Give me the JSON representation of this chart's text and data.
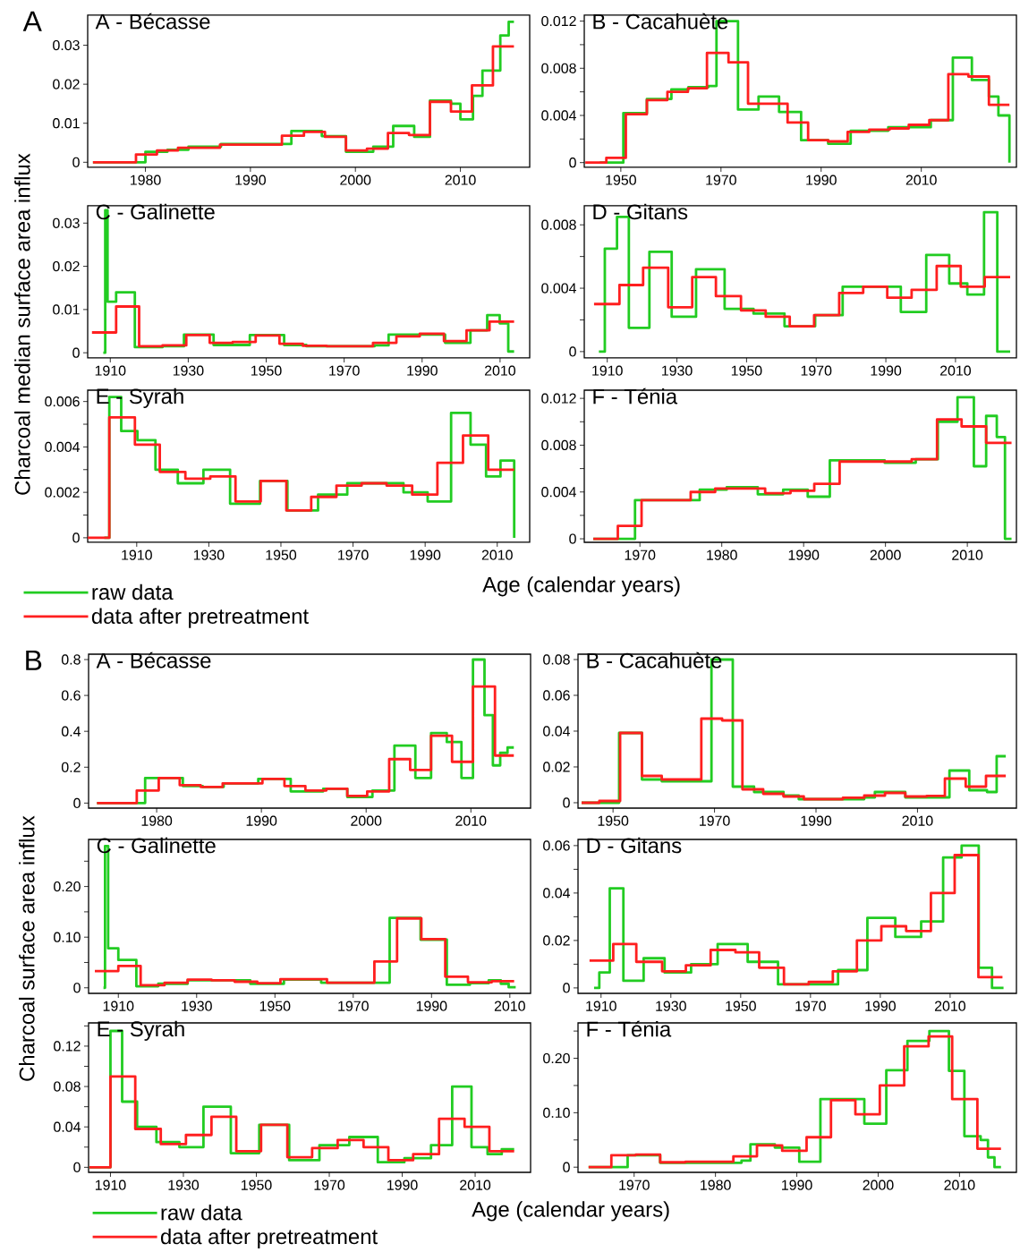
{
  "chart_data": [
    {
      "type": "step",
      "title": "A - Bécasse",
      "annotations": [
        "A"
      ],
      "xlim": [
        1974.5,
        2016.6
      ],
      "ylim": [
        -0.0013,
        0.0377
      ],
      "xticks": [
        1980,
        1990,
        2000,
        2010
      ],
      "yticks": [
        0,
        0.01,
        0.02,
        0.03
      ],
      "series": [
        {
          "color": "#22cc22",
          "x": [
            1975.0,
            1980.0,
            1982.1,
            1984.1,
            1987.2,
            1993.9,
            1996.8,
            1999.1,
            2001.7,
            2003.6,
            2005.6,
            2007.1,
            2009.1,
            2010.0,
            2011.2,
            2012.1,
            2013.8,
            2014.6,
            2015.1
          ],
          "values": [
            0,
            0.0027,
            0.0032,
            0.004,
            0.0047,
            0.008,
            0.0067,
            0.0027,
            0.004,
            0.0093,
            0.0065,
            0.0158,
            0.015,
            0.011,
            0.017,
            0.0235,
            0.0325,
            0.036,
            0.036
          ]
        },
        {
          "color": "#ff1f1f",
          "x": [
            1975.0,
            1979.1,
            1981.1,
            1983.1,
            1987.1,
            1993.0,
            1995.1,
            1997.1,
            1999.1,
            2001.1,
            2003.1,
            2005.1,
            2007.1,
            2009.1,
            2011.1,
            2013.1,
            2015.1
          ],
          "values": [
            0,
            0.002,
            0.003,
            0.0037,
            0.0045,
            0.0068,
            0.0078,
            0.0065,
            0.003,
            0.0035,
            0.0075,
            0.007,
            0.0155,
            0.013,
            0.0197,
            0.0297,
            0.0297
          ]
        }
      ]
    },
    {
      "type": "step",
      "title": "B - Cacahuète",
      "xlim": [
        1942.7,
        2029.0
      ],
      "ylim": [
        -0.0004,
        0.0125
      ],
      "xticks": [
        1950,
        1970,
        1990,
        2010
      ],
      "yticks": [
        0,
        {
          "value": 0.002,
          "label": null
        },
        0.004,
        {
          "value": 0.006,
          "label": null
        },
        0.008,
        {
          "value": 0.01,
          "label": null
        },
        0.012
      ],
      "series": [
        {
          "color": "#22cc22",
          "x": [
            1945.8,
            1950.5,
            1955.2,
            1960.1,
            1963.5,
            1967.5,
            1969.1,
            1973.4,
            1977.5,
            1981.6,
            1986.0,
            1991.4,
            1995.9,
            2003.4,
            2011.9,
            2016.3,
            2020.1,
            2023.5,
            2025.4,
            2027.6
          ],
          "values": [
            0,
            0.0042,
            0.0054,
            0.0062,
            0.0064,
            0.0065,
            0.012,
            0.0045,
            0.0056,
            0.0043,
            0.0019,
            0.0016,
            0.0027,
            0.003,
            0.0036,
            0.0089,
            0.007,
            0.0056,
            0.004,
            0
          ]
        },
        {
          "color": "#ff1f1f",
          "x": [
            1942.9,
            1947.1,
            1951.0,
            1955.2,
            1959.3,
            1963.4,
            1967.2,
            1971.5,
            1975.4,
            1983.3,
            1987.4,
            1991.4,
            1995.3,
            1999.6,
            2003.7,
            2007.5,
            2011.6,
            2015.4,
            2019.4,
            2023.5,
            2027.6
          ],
          "values": [
            0,
            0.0004,
            0.0041,
            0.0053,
            0.006,
            0.0063,
            0.0093,
            0.0085,
            0.005,
            0.0034,
            0.0019,
            0.0018,
            0.0026,
            0.0028,
            0.0029,
            0.0032,
            0.0036,
            0.0075,
            0.0073,
            0.0049,
            0.0049
          ]
        }
      ]
    },
    {
      "type": "step",
      "title": "C - Galinette",
      "ylabel": "Charcoal median surface area influx",
      "xlim": [
        1904.2,
        2017.6
      ],
      "ylim": [
        -0.0012,
        0.034
      ],
      "xticks": [
        1910,
        1930,
        1950,
        1970,
        1990,
        2010
      ],
      "yticks": [
        0,
        0.01,
        0.02,
        0.03
      ],
      "series": [
        {
          "color": "#22cc22",
          "x": [
            1908.2,
            1908.7,
            1909.3,
            1911.5,
            1916.3,
            1923.4,
            1928.9,
            1936.5,
            1945.8,
            1954.6,
            1960.3,
            1977.8,
            1981.4,
            1995.9,
            2002.4,
            2006.7,
            2009.9,
            2012.1,
            2013.6
          ],
          "values": [
            0,
            0.033,
            0.0118,
            0.014,
            0.0013,
            0.0015,
            0.0042,
            0.0018,
            0.0041,
            0.0018,
            0.0015,
            0.0017,
            0.0042,
            0.0023,
            0.0052,
            0.0087,
            0.0068,
            0.0003,
            0.0003
          ]
        },
        {
          "color": "#ff1f1f",
          "x": [
            1905.3,
            1911.5,
            1917.4,
            1923.4,
            1929.5,
            1935.5,
            1941.4,
            1947.3,
            1953.4,
            1959.4,
            1965.5,
            1977.4,
            1983.4,
            1989.4,
            1995.6,
            2001.4,
            2007.3,
            2013.6
          ],
          "values": [
            0.0047,
            0.0107,
            0.0015,
            0.0017,
            0.0041,
            0.0023,
            0.0025,
            0.004,
            0.0021,
            0.0016,
            0.0015,
            0.0023,
            0.0038,
            0.0044,
            0.0027,
            0.0052,
            0.0072,
            0.0072
          ]
        }
      ]
    },
    {
      "type": "step",
      "title": "D - Gitans",
      "xlim": [
        1903.4,
        2027.5
      ],
      "ylim": [
        -0.0004,
        0.0092
      ],
      "xticks": [
        1910,
        1930,
        1950,
        1970,
        1990,
        2010
      ],
      "yticks": [
        0,
        {
          "value": 0.002,
          "label": null
        },
        0.004,
        {
          "value": 0.006,
          "label": null
        },
        0.008
      ],
      "series": [
        {
          "color": "#22cc22",
          "x": [
            1907.6,
            1909.3,
            1912.8,
            1916.2,
            1922.1,
            1928.5,
            1935.5,
            1943.7,
            1952.0,
            1960.9,
            1969.7,
            1977.6,
            1994.3,
            2001.6,
            2008.2,
            2013.4,
            2018.2,
            2022.0,
            2025.7
          ],
          "values": [
            0,
            0.0065,
            0.0085,
            0.0015,
            0.0063,
            0.0022,
            0.0052,
            0.0027,
            0.0024,
            0.0016,
            0.0023,
            0.0041,
            0.0025,
            0.0061,
            0.0043,
            0.0036,
            0.0088,
            0,
            0
          ]
        },
        {
          "color": "#ff1f1f",
          "x": [
            1906.2,
            1913.5,
            1920.3,
            1927.5,
            1934.4,
            1941.2,
            1948.4,
            1955.5,
            1962.4,
            1969.4,
            1976.6,
            1983.5,
            1990.4,
            1997.4,
            2004.6,
            2011.5,
            2018.4,
            2025.7
          ],
          "values": [
            0.003,
            0.0042,
            0.0053,
            0.0028,
            0.0047,
            0.0035,
            0.0026,
            0.0022,
            0.0016,
            0.0023,
            0.0037,
            0.0041,
            0.0034,
            0.0039,
            0.0054,
            0.0041,
            0.0047,
            0.0047
          ]
        }
      ]
    },
    {
      "type": "step",
      "title": "E - Syrah",
      "legend": "bottom left",
      "xlim": [
        1896.4,
        2019.0
      ],
      "ylim": [
        -0.0002,
        0.0065
      ],
      "xticks": [
        1910,
        1930,
        1950,
        1970,
        1990,
        2010
      ],
      "yticks": [
        0,
        {
          "value": 0.001,
          "label": null
        },
        0.002,
        {
          "value": 0.003,
          "label": null
        },
        0.004,
        {
          "value": 0.005,
          "label": null
        },
        0.006
      ],
      "series": [
        {
          "name": "raw data",
          "color": "#22cc22",
          "x": [
            1901.0,
            1902.4,
            1905.7,
            1910.2,
            1915.2,
            1921.4,
            1928.5,
            1935.9,
            1944.2,
            1951.8,
            1960.3,
            1968.4,
            1984.0,
            1990.7,
            1997.2,
            2002.6,
            2006.9,
            2010.9,
            2014.7
          ],
          "values": [
            0,
            0.0062,
            0.0047,
            0.0043,
            0.003,
            0.0024,
            0.003,
            0.0015,
            0.0025,
            0.0012,
            0.0019,
            0.0024,
            0.002,
            0.0016,
            0.0055,
            0.0041,
            0.0027,
            0.0034,
            0
          ]
        },
        {
          "name": "data after pretreatment",
          "color": "#ff1f1f",
          "x": [
            1896.4,
            1902.4,
            1909.5,
            1916.4,
            1923.5,
            1930.4,
            1937.4,
            1944.4,
            1951.5,
            1958.4,
            1965.4,
            1972.4,
            1979.3,
            1986.4,
            1993.4,
            2000.5,
            2007.5,
            2014.7
          ],
          "values": [
            0,
            0.0053,
            0.0041,
            0.0029,
            0.0026,
            0.0027,
            0.0016,
            0.0025,
            0.0012,
            0.0018,
            0.0023,
            0.0024,
            0.0023,
            0.0019,
            0.0033,
            0.0045,
            0.003,
            0.003
          ]
        }
      ]
    },
    {
      "type": "step",
      "title": "F - Ténia",
      "xlabel": "Age (calendar years)",
      "xlim": [
        1963.2,
        2016.0
      ],
      "ylim": [
        -0.0003,
        0.0127
      ],
      "xticks": [
        1970,
        1980,
        1990,
        2000,
        2010
      ],
      "yticks": [
        0,
        {
          "value": 0.002,
          "label": null
        },
        0.004,
        {
          "value": 0.006,
          "label": null
        },
        0.008,
        {
          "value": 0.01,
          "label": null
        },
        0.012
      ],
      "series": [
        {
          "color": "#22cc22",
          "x": [
            1964.3,
            1969.4,
            1977.3,
            1980.6,
            1984.4,
            1987.5,
            1990.5,
            1993.2,
            1999.9,
            2003.7,
            2006.4,
            2008.8,
            2010.8,
            2012.3,
            2013.6,
            2014.6,
            2015.4
          ],
          "values": [
            0,
            0.0033,
            0.0042,
            0.0044,
            0.0038,
            0.0042,
            0.0036,
            0.0067,
            0.0065,
            0.0068,
            0.01,
            0.0121,
            0.0062,
            0.0105,
            0.0087,
            0,
            0
          ]
        },
        {
          "color": "#ff1f1f",
          "x": [
            1964.3,
            1967.3,
            1970.2,
            1976.2,
            1979.2,
            1985.3,
            1988.4,
            1991.3,
            1994.4,
            2003.2,
            2006.3,
            2009.3,
            2012.3,
            2015.4
          ],
          "values": [
            0,
            0.0011,
            0.0033,
            0.004,
            0.0043,
            0.0039,
            0.0041,
            0.0047,
            0.0066,
            0.0068,
            0.0102,
            0.0096,
            0.0082,
            0.0082
          ]
        }
      ]
    },
    {
      "type": "step",
      "title": "A - Bécasse",
      "annotations": [
        "B"
      ],
      "xlim": [
        1973.5,
        2015.7
      ],
      "ylim": [
        -0.028,
        0.83
      ],
      "xticks": [
        1980,
        1990,
        2000,
        2010
      ],
      "yticks": [
        0,
        0.2,
        0.4,
        0.6,
        0.8
      ],
      "series": [
        {
          "color": "#22cc22",
          "x": [
            1974.3,
            1978.9,
            1982.5,
            1984.4,
            1986.4,
            1989.7,
            1992.8,
            1995.9,
            1998.2,
            2000.6,
            2002.7,
            2004.7,
            2006.2,
            2007.7,
            2009.1,
            2010.2,
            2011.3,
            2012.1,
            2012.8,
            2013.5,
            2014.1
          ],
          "values": [
            0,
            0.14,
            0.095,
            0.09,
            0.11,
            0.135,
            0.065,
            0.08,
            0.034,
            0.07,
            0.32,
            0.14,
            0.39,
            0.34,
            0.14,
            0.8,
            0.49,
            0.21,
            0.28,
            0.31,
            0.31
          ]
        },
        {
          "color": "#ff1f1f",
          "x": [
            1974.3,
            1978.1,
            1980.2,
            1982.2,
            1984.2,
            1986.3,
            1990.1,
            1992.2,
            1994.2,
            1996.2,
            1998.2,
            2000.1,
            2002.2,
            2004.2,
            2006.2,
            2008.2,
            2010.2,
            2012.3,
            2014.1
          ],
          "values": [
            0,
            0.07,
            0.14,
            0.1,
            0.09,
            0.11,
            0.135,
            0.095,
            0.07,
            0.08,
            0.04,
            0.065,
            0.245,
            0.185,
            0.375,
            0.23,
            0.65,
            0.265,
            0.265
          ]
        }
      ]
    },
    {
      "type": "step",
      "title": "B - Cacahuète",
      "xlim": [
        1943.1,
        2029.5
      ],
      "ylim": [
        -0.003,
        0.083
      ],
      "xticks": [
        1950,
        1970,
        1990,
        2010
      ],
      "yticks": [
        0,
        0.02,
        0.04,
        0.06,
        0.08
      ],
      "series": [
        {
          "color": "#22cc22",
          "x": [
            1943.8,
            1951.2,
            1955.7,
            1959.6,
            1969.4,
            1973.6,
            1977.8,
            1983.6,
            1986.6,
            1999.5,
            2001.6,
            2007.6,
            2016.3,
            2020.2,
            2023.7,
            2025.6,
            2027.4
          ],
          "values": [
            0,
            0.039,
            0.013,
            0.012,
            0.08,
            0.009,
            0.006,
            0.004,
            0.002,
            0.003,
            0.006,
            0.003,
            0.018,
            0.007,
            0.006,
            0.026,
            0.026
          ]
        },
        {
          "color": "#ff1f1f",
          "x": [
            1943.8,
            1947.3,
            1951.4,
            1955.7,
            1959.6,
            1967.4,
            1971.5,
            1975.5,
            1979.6,
            1983.6,
            1987.6,
            1995.3,
            1999.5,
            2003.6,
            2007.6,
            2011.8,
            2015.4,
            2019.5,
            2023.5,
            2027.4
          ],
          "values": [
            0,
            0.001,
            0.039,
            0.015,
            0.013,
            0.047,
            0.046,
            0.0075,
            0.005,
            0.0035,
            0.002,
            0.0028,
            0.004,
            0.0055,
            0.0035,
            0.0038,
            0.0135,
            0.009,
            0.015,
            0.015
          ]
        }
      ]
    },
    {
      "type": "step",
      "title": "C - Galinette",
      "ylabel": "Charcoal surface area influx",
      "xlim": [
        1902.4,
        2015.3
      ],
      "ylim": [
        -0.011,
        0.293
      ],
      "xticks": [
        1910,
        1930,
        1950,
        1970,
        1990,
        2010
      ],
      "yticks": [
        0,
        {
          "value": 0.05,
          "label": null
        },
        {
          "value": 0.1,
          "label": "0.10"
        },
        {
          "value": 0.15,
          "label": null
        },
        {
          "value": 0.2,
          "label": "0.20"
        },
        {
          "value": 0.25,
          "label": null
        }
      ],
      "series": [
        {
          "color": "#22cc22",
          "x": [
            1906.2,
            1906.6,
            1907.4,
            1910.0,
            1914.6,
            1920.2,
            1927.7,
            1943.7,
            1952.3,
            1961.8,
            1979.3,
            1987.2,
            1993.9,
            1999.8,
            2004.6,
            2007.7,
            2009.7,
            2011.5
          ],
          "values": [
            0,
            0.28,
            0.078,
            0.055,
            0.003,
            0.008,
            0.015,
            0.008,
            0.016,
            0.01,
            0.138,
            0.095,
            0.006,
            0.009,
            0.015,
            0.008,
            0.001,
            0.001
          ]
        },
        {
          "color": "#ff1f1f",
          "x": [
            1904.0,
            1910.0,
            1915.7,
            1921.8,
            1927.7,
            1933.8,
            1939.7,
            1945.5,
            1951.4,
            1963.3,
            1975.4,
            1981.2,
            1987.4,
            1993.5,
            1999.3,
            2005.4,
            2011.1
          ],
          "values": [
            0.033,
            0.043,
            0.005,
            0.01,
            0.016,
            0.015,
            0.012,
            0.009,
            0.017,
            0.01,
            0.052,
            0.137,
            0.096,
            0.022,
            0.011,
            0.013,
            0.013
          ]
        }
      ]
    },
    {
      "type": "step",
      "title": "D - Gitans",
      "xlim": [
        1903.4,
        2029.0
      ],
      "ylim": [
        -0.0023,
        0.0626
      ],
      "xticks": [
        1910,
        1930,
        1950,
        1970,
        1990,
        2010
      ],
      "yticks": [
        0,
        {
          "value": 0.01,
          "label": null
        },
        0.02,
        {
          "value": 0.03,
          "label": null
        },
        0.04,
        {
          "value": 0.05,
          "label": null
        },
        0.06
      ],
      "series": [
        {
          "color": "#22cc22",
          "x": [
            1908.0,
            1909.5,
            1912.5,
            1916.4,
            1922.2,
            1928.2,
            1935.8,
            1943.4,
            1952.0,
            1960.7,
            1977.9,
            1986.3,
            1994.3,
            2001.7,
            2008.0,
            2013.3,
            2018.2,
            2022.0,
            2025.3
          ],
          "values": [
            0,
            0.0065,
            0.042,
            0.003,
            0.0125,
            0.0065,
            0.01,
            0.0185,
            0.011,
            0.0015,
            0.0075,
            0.0295,
            0.0215,
            0.028,
            0.055,
            0.06,
            0.0085,
            0,
            0
          ]
        },
        {
          "color": "#ff1f1f",
          "x": [
            1906.7,
            1913.5,
            1920.1,
            1927.5,
            1934.3,
            1941.4,
            1948.5,
            1955.3,
            1962.4,
            1969.5,
            1976.4,
            1983.3,
            1990.3,
            1997.4,
            2004.5,
            2011.3,
            2018.1,
            2025.0
          ],
          "values": [
            0.0115,
            0.0185,
            0.011,
            0.007,
            0.0095,
            0.016,
            0.015,
            0.0085,
            0.0015,
            0.0025,
            0.007,
            0.02,
            0.026,
            0.024,
            0.04,
            0.056,
            0.0045,
            0.0045
          ]
        }
      ]
    },
    {
      "type": "step",
      "title": "E - Syrah",
      "legend": "bottom left",
      "xlim": [
        1904.0,
        2025.2
      ],
      "ylim": [
        -0.005,
        0.143
      ],
      "xticks": [
        1910,
        1930,
        1950,
        1970,
        1990,
        2010
      ],
      "yticks": [
        0,
        {
          "value": 0.02,
          "label": null
        },
        0.04,
        {
          "value": 0.06,
          "label": null
        },
        0.08,
        {
          "value": 0.1,
          "label": null
        },
        0.12,
        {
          "value": 0.14,
          "label": null
        }
      ],
      "series": [
        {
          "name": "raw data",
          "color": "#22cc22",
          "x": [
            1904.2,
            1910.0,
            1913.2,
            1917.3,
            1922.6,
            1928.9,
            1935.5,
            1943.0,
            1950.8,
            1959.0,
            1967.3,
            1975.5,
            1983.3,
            1990.6,
            1997.9,
            2003.7,
            2009.0,
            2013.4,
            2017.3,
            2020.7
          ],
          "values": [
            0,
            0.135,
            0.065,
            0.04,
            0.025,
            0.02,
            0.06,
            0.014,
            0.042,
            0.007,
            0.022,
            0.03,
            0.005,
            0.009,
            0.022,
            0.08,
            0.02,
            0.013,
            0.018,
            0.018
          ]
        },
        {
          "name": "data after pretreatment",
          "color": "#ff1f1f",
          "x": [
            1904.2,
            1910.0,
            1916.8,
            1923.8,
            1930.7,
            1937.7,
            1944.5,
            1951.3,
            1958.5,
            1965.3,
            1972.3,
            1979.4,
            1986.2,
            1993.0,
            2000.1,
            2007.1,
            2013.9,
            2020.7
          ],
          "values": [
            0,
            0.09,
            0.038,
            0.023,
            0.032,
            0.05,
            0.016,
            0.042,
            0.01,
            0.019,
            0.027,
            0.02,
            0.007,
            0.013,
            0.048,
            0.04,
            0.016,
            0.016
          ]
        }
      ]
    },
    {
      "type": "step",
      "title": "F - Ténia",
      "xlabel": "Age (calendar years)",
      "xlim": [
        1963.1,
        2017.0
      ],
      "ylim": [
        -0.0095,
        0.265
      ],
      "xticks": [
        1970,
        1980,
        1990,
        2000,
        2010
      ],
      "yticks": [
        0,
        {
          "value": 0.05,
          "label": null
        },
        {
          "value": 0.1,
          "label": "0.10"
        },
        {
          "value": 0.15,
          "label": null
        },
        {
          "value": 0.2,
          "label": "0.20"
        },
        {
          "value": 0.25,
          "label": null
        }
      ],
      "series": [
        {
          "color": "#22cc22",
          "x": [
            1964.4,
            1969.2,
            1973.2,
            1983.2,
            1984.3,
            1987.3,
            1990.3,
            1992.9,
            1998.3,
            2001.0,
            2003.6,
            2006.3,
            2008.7,
            2010.6,
            2012.6,
            2013.5,
            2014.3,
            2015.1
          ],
          "values": [
            0,
            0.022,
            0.008,
            0.012,
            0.042,
            0.036,
            0.01,
            0.125,
            0.08,
            0.178,
            0.232,
            0.25,
            0.177,
            0.057,
            0.05,
            0.018,
            0,
            0
          ]
        },
        {
          "color": "#ff1f1f",
          "x": [
            1964.4,
            1967.2,
            1970.2,
            1973.2,
            1976.3,
            1982.2,
            1985.1,
            1988.2,
            1991.2,
            1994.2,
            1997.2,
            2000.2,
            2003.2,
            2006.2,
            2009.1,
            2012.2,
            2015.1
          ],
          "values": [
            0,
            0.022,
            0.023,
            0.009,
            0.01,
            0.02,
            0.04,
            0.03,
            0.055,
            0.123,
            0.097,
            0.15,
            0.222,
            0.24,
            0.125,
            0.034,
            0.034
          ]
        }
      ]
    }
  ]
}
